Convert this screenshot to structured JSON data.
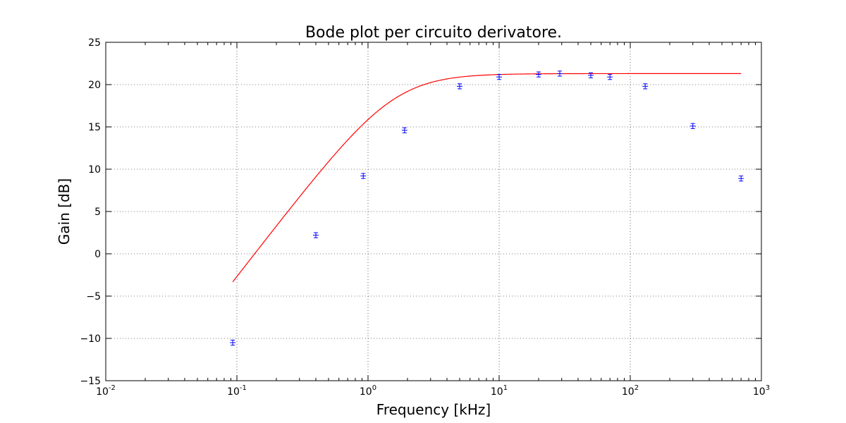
{
  "chart_data": {
    "type": "scatter",
    "title": "Bode plot per circuito derivatore.",
    "xlabel": "Frequency [kHz]",
    "ylabel": "Gain [dB]",
    "xscale": "log",
    "xlim": [
      0.01,
      1000
    ],
    "ylim": [
      -15,
      25
    ],
    "grid": true,
    "x_tick_labels": [
      {
        "base": "10",
        "exp": "-2"
      },
      {
        "base": "10",
        "exp": "-1"
      },
      {
        "base": "10",
        "exp": "0"
      },
      {
        "base": "10",
        "exp": "1"
      },
      {
        "base": "10",
        "exp": "2"
      },
      {
        "base": "10",
        "exp": "3"
      }
    ],
    "y_ticks": [
      -15,
      -10,
      -5,
      0,
      5,
      10,
      15,
      20,
      25
    ],
    "y_tick_labels": [
      "−15",
      "−10",
      "−5",
      "0",
      "5",
      "10",
      "15",
      "20",
      "25"
    ],
    "series": [
      {
        "kind": "points",
        "color": "#0000ff",
        "marker": "plus",
        "points": [
          {
            "x": 0.093,
            "y": -10.5,
            "yerr": 0.3
          },
          {
            "x": 0.4,
            "y": 2.2,
            "yerr": 0.3
          },
          {
            "x": 0.92,
            "y": 9.2,
            "yerr": 0.3
          },
          {
            "x": 1.9,
            "y": 14.6,
            "yerr": 0.3
          },
          {
            "x": 5.0,
            "y": 19.8,
            "yerr": 0.3
          },
          {
            "x": 10.0,
            "y": 20.9,
            "yerr": 0.3
          },
          {
            "x": 20.0,
            "y": 21.2,
            "yerr": 0.3
          },
          {
            "x": 29.0,
            "y": 21.3,
            "yerr": 0.3
          },
          {
            "x": 50.0,
            "y": 21.1,
            "yerr": 0.3
          },
          {
            "x": 70.0,
            "y": 20.9,
            "yerr": 0.3
          },
          {
            "x": 130.0,
            "y": 19.8,
            "yerr": 0.3
          },
          {
            "x": 300.0,
            "y": 15.1,
            "yerr": 0.3
          },
          {
            "x": 700.0,
            "y": 8.9,
            "yerr": 0.3
          }
        ]
      },
      {
        "kind": "line",
        "color": "#ff0000",
        "fit": {
          "gain_db": 21.3,
          "corner_khz": 1.58
        },
        "x_range": [
          0.093,
          700
        ]
      }
    ]
  }
}
